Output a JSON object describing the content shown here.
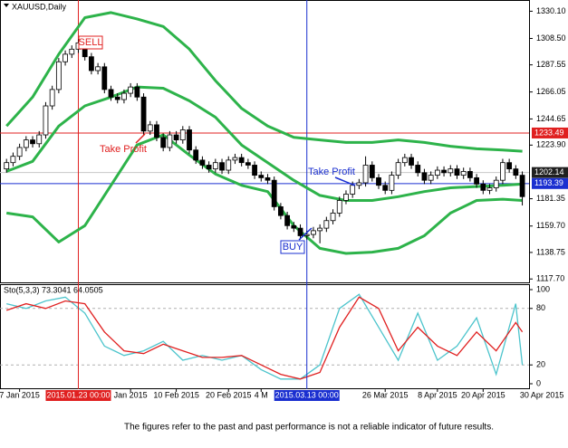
{
  "chart_data": [
    {
      "type": "candlestick",
      "title": "XAUUSD,Daily",
      "xlim": [
        -1,
        86
      ],
      "ylim": [
        1115,
        1339
      ],
      "yticks": [
        {
          "value": 1330.1,
          "label": "1330.10"
        },
        {
          "value": 1308.5,
          "label": "1308.50"
        },
        {
          "value": 1287.55,
          "label": "1287.55"
        },
        {
          "value": 1266.05,
          "label": "1266.05"
        },
        {
          "value": 1244.65,
          "label": "1244.65"
        },
        {
          "value": 1223.9,
          "label": "1223.90"
        },
        {
          "value": 1181.35,
          "label": "1181.35"
        },
        {
          "value": 1159.7,
          "label": "1159.70"
        },
        {
          "value": 1138.75,
          "label": "1138.75"
        },
        {
          "value": 1117.7,
          "label": "1117.70"
        }
      ],
      "ohlc": [
        [
          1205,
          1213,
          1202,
          1210
        ],
        [
          1210,
          1218,
          1207,
          1215
        ],
        [
          1215,
          1225,
          1212,
          1222
        ],
        [
          1222,
          1231,
          1219,
          1228
        ],
        [
          1228,
          1231,
          1222,
          1225
        ],
        [
          1225,
          1235,
          1222,
          1232
        ],
        [
          1232,
          1258,
          1229,
          1255
        ],
        [
          1255,
          1271,
          1252,
          1268
        ],
        [
          1268,
          1293,
          1265,
          1290
        ],
        [
          1290,
          1299,
          1287,
          1296
        ],
        [
          1296,
          1303,
          1293,
          1300
        ],
        [
          1300,
          1308,
          1297,
          1305
        ],
        [
          1305,
          1308,
          1291,
          1294
        ],
        [
          1294,
          1297,
          1280,
          1283
        ],
        [
          1283,
          1289,
          1280,
          1286
        ],
        [
          1286,
          1289,
          1265,
          1268
        ],
        [
          1268,
          1271,
          1259,
          1262
        ],
        [
          1262,
          1265,
          1257,
          1260
        ],
        [
          1260,
          1268,
          1257,
          1265
        ],
        [
          1265,
          1273,
          1262,
          1270
        ],
        [
          1270,
          1273,
          1259,
          1262
        ],
        [
          1262,
          1265,
          1232,
          1235
        ],
        [
          1235,
          1243,
          1232,
          1240
        ],
        [
          1240,
          1243,
          1227,
          1230
        ],
        [
          1230,
          1233,
          1219,
          1222
        ],
        [
          1222,
          1235,
          1219,
          1232
        ],
        [
          1232,
          1235,
          1225,
          1228
        ],
        [
          1228,
          1239,
          1225,
          1236
        ],
        [
          1236,
          1239,
          1217,
          1220
        ],
        [
          1220,
          1223,
          1209,
          1212
        ],
        [
          1212,
          1215,
          1205,
          1208
        ],
        [
          1208,
          1211,
          1202,
          1205
        ],
        [
          1205,
          1213,
          1202,
          1210
        ],
        [
          1210,
          1213,
          1201,
          1204
        ],
        [
          1204,
          1215,
          1201,
          1212
        ],
        [
          1212,
          1217,
          1209,
          1214
        ],
        [
          1214,
          1217,
          1207,
          1210
        ],
        [
          1210,
          1213,
          1205,
          1208
        ],
        [
          1208,
          1211,
          1197,
          1200
        ],
        [
          1200,
          1203,
          1195,
          1198
        ],
        [
          1198,
          1201,
          1193,
          1196
        ],
        [
          1196,
          1199,
          1172,
          1175
        ],
        [
          1175,
          1178,
          1165,
          1168
        ],
        [
          1168,
          1171,
          1157,
          1160
        ],
        [
          1160,
          1163,
          1155,
          1158
        ],
        [
          1158,
          1161,
          1149,
          1152
        ],
        [
          1152,
          1156,
          1149,
          1153
        ],
        [
          1153,
          1159,
          1150,
          1156
        ],
        [
          1156,
          1161,
          1146,
          1158
        ],
        [
          1158,
          1167,
          1155,
          1164
        ],
        [
          1164,
          1173,
          1161,
          1170
        ],
        [
          1170,
          1183,
          1167,
          1180
        ],
        [
          1180,
          1188,
          1177,
          1185
        ],
        [
          1185,
          1195,
          1182,
          1192
        ],
        [
          1192,
          1197,
          1189,
          1194
        ],
        [
          1194,
          1215,
          1191,
          1208
        ],
        [
          1208,
          1211,
          1195,
          1198
        ],
        [
          1198,
          1201,
          1189,
          1192
        ],
        [
          1192,
          1195,
          1185,
          1188
        ],
        [
          1188,
          1203,
          1185,
          1200
        ],
        [
          1200,
          1213,
          1197,
          1210
        ],
        [
          1210,
          1217,
          1207,
          1214
        ],
        [
          1214,
          1217,
          1205,
          1208
        ],
        [
          1208,
          1211,
          1199,
          1202
        ],
        [
          1202,
          1205,
          1193,
          1196
        ],
        [
          1196,
          1203,
          1193,
          1200
        ],
        [
          1200,
          1207,
          1197,
          1204
        ],
        [
          1204,
          1207,
          1199,
          1202
        ],
        [
          1202,
          1208,
          1199,
          1205
        ],
        [
          1205,
          1208,
          1197,
          1200
        ],
        [
          1200,
          1206,
          1197,
          1203
        ],
        [
          1203,
          1206,
          1195,
          1198
        ],
        [
          1198,
          1201,
          1190,
          1193
        ],
        [
          1193,
          1196,
          1185,
          1188
        ],
        [
          1188,
          1193,
          1185,
          1190
        ],
        [
          1190,
          1199,
          1187,
          1196
        ],
        [
          1196,
          1213,
          1193,
          1210
        ],
        [
          1210,
          1213,
          1202,
          1205
        ],
        [
          1205,
          1208,
          1197,
          1200
        ],
        [
          1200,
          1203,
          1176,
          1183
        ]
      ],
      "band_color": "#2db34a",
      "series": [
        {
          "x": [
            0,
            4,
            8,
            12,
            16,
            20,
            24,
            28,
            32,
            36,
            40,
            44,
            48,
            52,
            56,
            60,
            64,
            68,
            72,
            76,
            79
          ],
          "values": [
            1239,
            1262,
            1296,
            1325,
            1329,
            1324,
            1318,
            1300,
            1275,
            1253,
            1239,
            1230,
            1228,
            1226,
            1226,
            1228,
            1226,
            1223,
            1221,
            1220,
            1219
          ]
        },
        {
          "x": [
            0,
            4,
            8,
            12,
            16,
            20,
            24,
            28,
            32,
            36,
            40,
            44,
            48,
            52,
            56,
            60,
            64,
            68,
            72,
            76,
            79
          ],
          "values": [
            1203,
            1211,
            1239,
            1255,
            1262,
            1270,
            1269,
            1259,
            1246,
            1224,
            1210,
            1196,
            1184,
            1180,
            1180,
            1183,
            1187,
            1190,
            1191,
            1192,
            1193
          ]
        },
        {
          "x": [
            0,
            4,
            8,
            12,
            16,
            20,
            24,
            28,
            32,
            36,
            40,
            44,
            48,
            52,
            56,
            60,
            64,
            68,
            72,
            76,
            79
          ],
          "values": [
            1170,
            1167,
            1147,
            1160,
            1192,
            1224,
            1232,
            1216,
            1201,
            1192,
            1187,
            1160,
            1142,
            1138,
            1139,
            1142,
            1152,
            1170,
            1180,
            1181,
            1180
          ]
        }
      ],
      "levels": [
        {
          "value": 1233.49,
          "color": "#e02020",
          "text_color": "#ffffff"
        },
        {
          "value": 1202.14,
          "color": "#202020",
          "line_color": "#c8c8c8",
          "text_color": "#ffffff"
        },
        {
          "value": 1193.39,
          "color": "#1a2fd0",
          "text_color": "#ffffff"
        }
      ],
      "markers": [
        {
          "x": 11,
          "label": "2015.01.23 00:00",
          "color": "#e02020"
        },
        {
          "x": 46,
          "label": "2015.03.13 00:00",
          "color": "#1a2fd0"
        }
      ],
      "annotations": [
        {
          "text": "SELL",
          "color": "#e02020"
        },
        {
          "text": "Take Profit",
          "color": "#e02020"
        },
        {
          "text": "Take Profit",
          "color": "#1a2fd0"
        },
        {
          "text": "BUY",
          "color": "#1a2fd0"
        }
      ]
    },
    {
      "type": "line",
      "title": "Sto(5,3,3) 73.3041 64.0505",
      "xlim": [
        -1,
        86
      ],
      "ylim": [
        0,
        100
      ],
      "yticks": [
        100,
        80,
        20,
        0
      ],
      "grid": "dashed",
      "xticks": [
        {
          "value": 2,
          "label": "7 Jan 2015"
        },
        {
          "value": 19,
          "label": "Jan 2015"
        },
        {
          "value": 26,
          "label": "10 Feb 2015"
        },
        {
          "value": 34,
          "label": "20 Feb 2015"
        },
        {
          "value": 39,
          "label": "4 M"
        },
        {
          "value": 58,
          "label": "26 Mar 2015"
        },
        {
          "value": 66,
          "label": "8 Apr 2015"
        },
        {
          "value": 73,
          "label": "20 Apr 2015"
        },
        {
          "value": 82,
          "label": "30 Apr 2015"
        }
      ],
      "series": [
        {
          "color": "#4cc4cc",
          "x": [
            0,
            3,
            6,
            9,
            12,
            15,
            18,
            21,
            24,
            27,
            30,
            33,
            36,
            39,
            42,
            45,
            48,
            51,
            54,
            57,
            60,
            63,
            66,
            69,
            72,
            75,
            78,
            79
          ],
          "values": [
            85,
            80,
            88,
            92,
            75,
            40,
            30,
            35,
            45,
            25,
            30,
            25,
            30,
            15,
            5,
            5,
            20,
            80,
            95,
            60,
            25,
            75,
            25,
            40,
            70,
            10,
            85,
            20
          ]
        },
        {
          "color": "#e02020",
          "x": [
            0,
            3,
            6,
            9,
            12,
            15,
            18,
            21,
            24,
            27,
            30,
            33,
            36,
            39,
            42,
            45,
            48,
            51,
            54,
            57,
            60,
            63,
            66,
            69,
            72,
            75,
            78,
            79
          ],
          "values": [
            78,
            85,
            80,
            88,
            85,
            55,
            35,
            32,
            42,
            35,
            28,
            28,
            30,
            20,
            10,
            5,
            12,
            60,
            92,
            80,
            35,
            60,
            40,
            30,
            55,
            35,
            65,
            55
          ]
        }
      ]
    }
  ],
  "disclaimer": "The figures refer to the past and past performance is not a reliable indicator of future results."
}
